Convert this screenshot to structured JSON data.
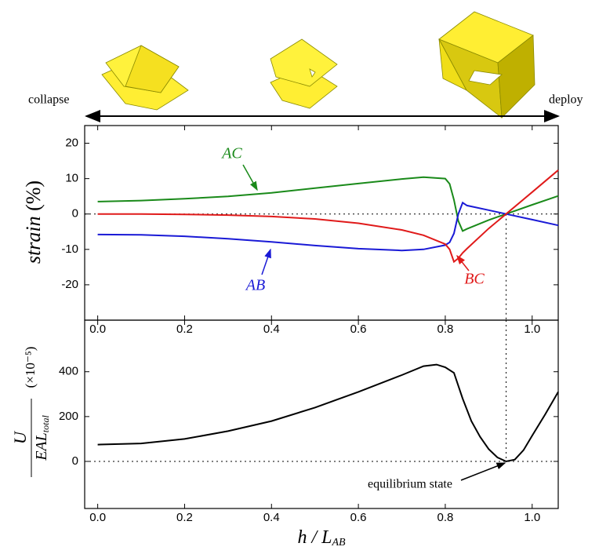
{
  "header": {
    "left": "collapse",
    "right": "deploy"
  },
  "chart_data": [
    {
      "type": "line",
      "y_label": {
        "text": "strain",
        "unit": "(%)"
      },
      "x": [
        0,
        0.1,
        0.2,
        0.3,
        0.4,
        0.5,
        0.6,
        0.7,
        0.75,
        0.8,
        0.81,
        0.82,
        0.83,
        0.84,
        0.85,
        0.9,
        0.94,
        1.0,
        1.06
      ],
      "series": [
        {
          "name": "AC",
          "color": "#1a8a1a",
          "values": [
            3.5,
            3.8,
            4.3,
            5.0,
            6.0,
            7.3,
            8.6,
            9.9,
            10.4,
            10.0,
            8.5,
            4.0,
            -2.0,
            -4.8,
            -4.2,
            -1.7,
            0,
            2.6,
            5.1
          ]
        },
        {
          "name": "AB",
          "color": "#1a1ad6",
          "values": [
            -5.8,
            -5.9,
            -6.3,
            -7.0,
            -7.9,
            -8.9,
            -9.8,
            -10.3,
            -10.0,
            -8.8,
            -8.0,
            -5.5,
            0,
            3.2,
            2.4,
            1.1,
            0,
            -1.6,
            -3.2
          ]
        },
        {
          "name": "BC",
          "color": "#e01a1a",
          "values": [
            0,
            0,
            -0.1,
            -0.3,
            -0.7,
            -1.4,
            -2.6,
            -4.5,
            -6.0,
            -8.5,
            -10.0,
            -13.5,
            -12.5,
            -11.0,
            -9.8,
            -4.1,
            0,
            6.2,
            12.4
          ]
        }
      ],
      "annotations": [
        "AC",
        "AB",
        "BC"
      ],
      "xlim": [
        -0.03,
        1.06
      ],
      "ylim": [
        -30,
        25
      ],
      "xticks": [
        {
          "value": 0,
          "label": "0.0"
        },
        {
          "value": 0.2,
          "label": "0.2"
        },
        {
          "value": 0.4,
          "label": "0.4"
        },
        {
          "value": 0.6,
          "label": "0.6"
        },
        {
          "value": 0.8,
          "label": "0.8"
        },
        {
          "value": 1.0,
          "label": "1.0"
        }
      ],
      "yticks": [
        -20,
        -10,
        0,
        10,
        20
      ],
      "ref_x": 0.94,
      "ref_y": 0
    },
    {
      "type": "line",
      "y_label": {
        "numerator": "U",
        "denominator": "EAL",
        "subscript": "total",
        "unit": "(×10⁻⁵)"
      },
      "x_label": {
        "text": "h / L",
        "subscript": "AB"
      },
      "x": [
        0,
        0.1,
        0.2,
        0.3,
        0.4,
        0.5,
        0.6,
        0.7,
        0.75,
        0.78,
        0.8,
        0.82,
        0.84,
        0.86,
        0.88,
        0.9,
        0.92,
        0.94,
        0.96,
        0.98,
        1.0,
        1.03,
        1.06
      ],
      "series": [
        {
          "name": "U",
          "color": "#000000",
          "values": [
            75,
            80,
            100,
            135,
            180,
            240,
            310,
            385,
            425,
            432,
            420,
            395,
            280,
            180,
            110,
            55,
            18,
            0,
            8,
            50,
            115,
            210,
            310
          ]
        }
      ],
      "annotations": [
        "equilibrium state"
      ],
      "xlim": [
        -0.03,
        1.06
      ],
      "ylim": [
        -210,
        630
      ],
      "xticks": [
        {
          "value": 0,
          "label": "0.0"
        },
        {
          "value": 0.2,
          "label": "0.2"
        },
        {
          "value": 0.4,
          "label": "0.4"
        },
        {
          "value": 0.6,
          "label": "0.6"
        },
        {
          "value": 0.8,
          "label": "0.8"
        },
        {
          "value": 1.0,
          "label": "1.0"
        }
      ],
      "yticks": [
        0,
        200,
        400
      ],
      "ref_x": 0.94,
      "ref_y": 0
    }
  ]
}
